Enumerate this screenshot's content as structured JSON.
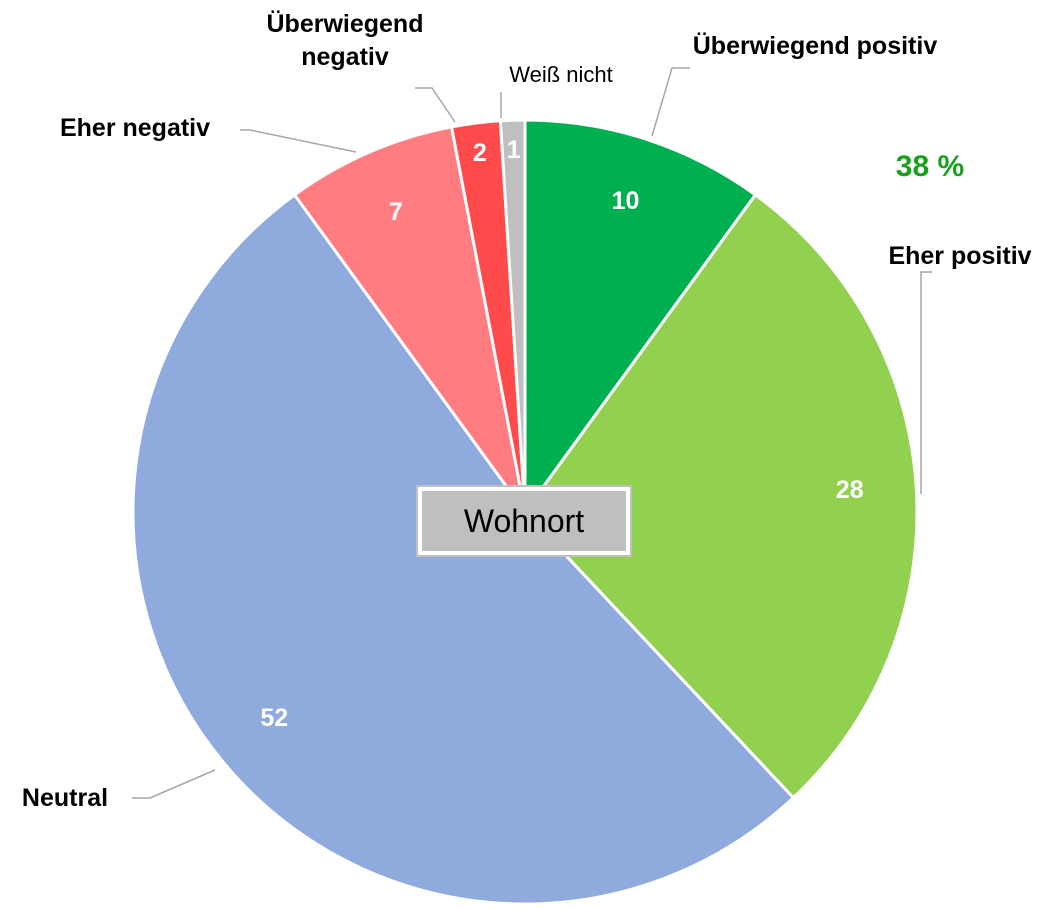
{
  "chart_data": {
    "type": "pie",
    "categories": [
      "Überwiegend positiv",
      "Eher positiv",
      "Neutral",
      "Eher negativ",
      "Überwiegend negativ",
      "Weiß nicht"
    ],
    "values": [
      10,
      28,
      52,
      7,
      2,
      1
    ],
    "colors": [
      "#00b050",
      "#92d050",
      "#8faadc",
      "#ff7c80",
      "#ff4b4b",
      "#bfbfbf"
    ],
    "annotation": "38 %",
    "center_label": "Wohnort"
  }
}
